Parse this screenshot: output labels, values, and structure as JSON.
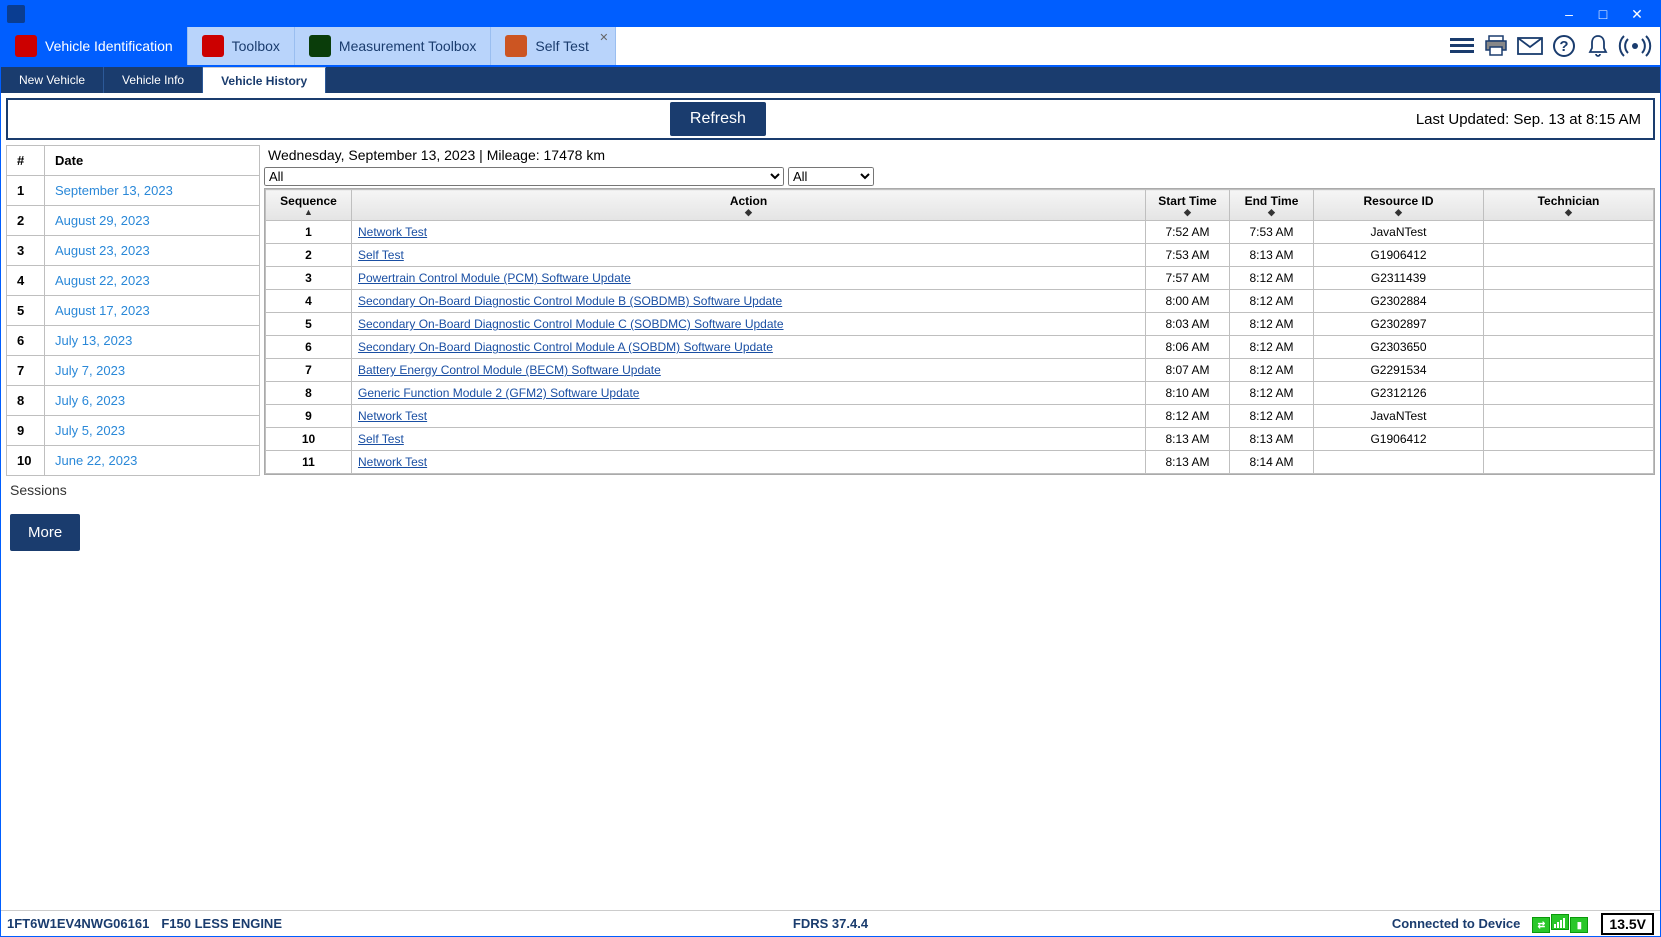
{
  "titlebar": {},
  "ribbon": {
    "tabs": [
      {
        "label": "Vehicle Identification",
        "icon_color": "#cc0000"
      },
      {
        "label": "Toolbox",
        "icon_color": "#cc0000"
      },
      {
        "label": "Measurement Toolbox",
        "icon_color": "#0a3d0a"
      },
      {
        "label": "Self Test",
        "icon_color": "#cc0000",
        "closable": true
      }
    ]
  },
  "subtabs": {
    "items": [
      {
        "label": "New Vehicle"
      },
      {
        "label": "Vehicle Info"
      },
      {
        "label": "Vehicle History",
        "active": true
      }
    ]
  },
  "refresh": {
    "button": "Refresh",
    "last_updated": "Last Updated: Sep. 13 at 8:15 AM"
  },
  "sessions": {
    "headers": {
      "num": "#",
      "date": "Date"
    },
    "rows": [
      {
        "n": "1",
        "date": "September 13, 2023"
      },
      {
        "n": "2",
        "date": "August 29, 2023"
      },
      {
        "n": "3",
        "date": "August 23, 2023"
      },
      {
        "n": "4",
        "date": "August 22, 2023"
      },
      {
        "n": "5",
        "date": "August 17, 2023"
      },
      {
        "n": "6",
        "date": "July 13, 2023"
      },
      {
        "n": "7",
        "date": "July 7, 2023"
      },
      {
        "n": "8",
        "date": "July 6, 2023"
      },
      {
        "n": "9",
        "date": "July 5, 2023"
      },
      {
        "n": "10",
        "date": "June 22, 2023"
      }
    ],
    "label": "Sessions",
    "more": "More"
  },
  "detail": {
    "info": "Wednesday, September 13, 2023    |    Mileage: 17478 km",
    "filter1": "All",
    "filter2": "All",
    "headers": {
      "sequence": "Sequence",
      "action": "Action",
      "start": "Start Time",
      "end": "End Time",
      "resource": "Resource ID",
      "technician": "Technician"
    },
    "rows": [
      {
        "seq": "1",
        "action": "Network Test",
        "start": "7:52 AM",
        "end": "7:53 AM",
        "res": "JavaNTest",
        "tech": ""
      },
      {
        "seq": "2",
        "action": "Self Test",
        "start": "7:53 AM",
        "end": "8:13 AM",
        "res": "G1906412",
        "tech": ""
      },
      {
        "seq": "3",
        "action": "Powertrain Control Module (PCM) Software Update",
        "start": "7:57 AM",
        "end": "8:12 AM",
        "res": "G2311439",
        "tech": ""
      },
      {
        "seq": "4",
        "action": "Secondary On-Board Diagnostic Control Module B (SOBDMB) Software Update",
        "start": "8:00 AM",
        "end": "8:12 AM",
        "res": "G2302884",
        "tech": ""
      },
      {
        "seq": "5",
        "action": "Secondary On-Board Diagnostic Control Module C (SOBDMC) Software Update",
        "start": "8:03 AM",
        "end": "8:12 AM",
        "res": "G2302897",
        "tech": ""
      },
      {
        "seq": "6",
        "action": "Secondary On-Board Diagnostic Control Module A (SOBDM) Software Update",
        "start": "8:06 AM",
        "end": "8:12 AM",
        "res": "G2303650",
        "tech": ""
      },
      {
        "seq": "7",
        "action": "Battery Energy Control Module (BECM) Software Update",
        "start": "8:07 AM",
        "end": "8:12 AM",
        "res": "G2291534",
        "tech": ""
      },
      {
        "seq": "8",
        "action": "Generic Function Module 2 (GFM2) Software Update",
        "start": "8:10 AM",
        "end": "8:12 AM",
        "res": "G2312126",
        "tech": ""
      },
      {
        "seq": "9",
        "action": "Network Test",
        "start": "8:12 AM",
        "end": "8:12 AM",
        "res": "JavaNTest",
        "tech": ""
      },
      {
        "seq": "10",
        "action": "Self Test",
        "start": "8:13 AM",
        "end": "8:13 AM",
        "res": "G1906412",
        "tech": ""
      },
      {
        "seq": "11",
        "action": "Network Test",
        "start": "8:13 AM",
        "end": "8:14 AM",
        "res": "",
        "tech": ""
      }
    ]
  },
  "statusbar": {
    "vin": "1FT6W1EV4NWG06161",
    "vehicle": "F150 LESS ENGINE",
    "app": "FDRS 37.4.4",
    "connected": "Connected to Device",
    "voltage": "13.5V"
  },
  "colors": {
    "brand_blue": "#005eff",
    "dark_navy": "#1a3c6e",
    "tab_bg": "#b9d4fb",
    "link": "#2a88d8",
    "green": "#29c729"
  }
}
